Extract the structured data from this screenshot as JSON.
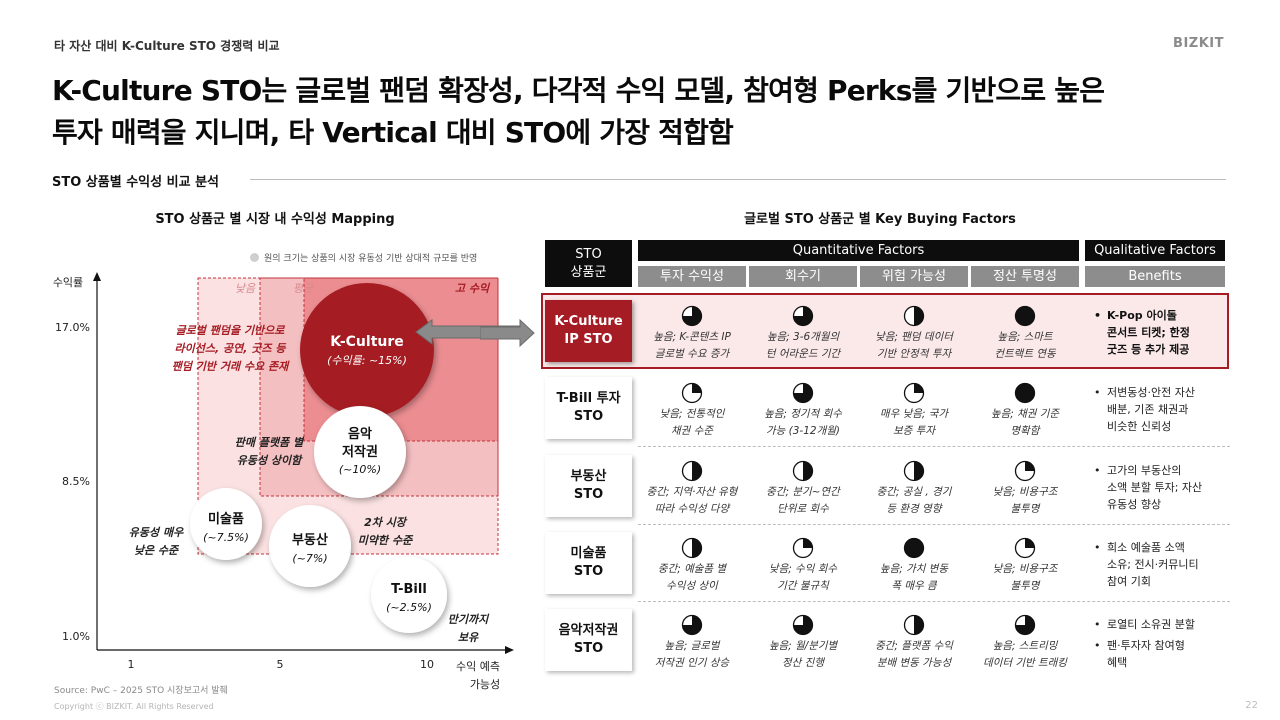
{
  "header": {
    "breadcrumb": "타 자산 대비 K-Culture STO 경쟁력 비교",
    "brand": "BIZKIT",
    "headline_line1": "K-Culture STO는 글로벌 팬덤 확장성, 다각적 수익 모델, 참여형 Perks를 기반으로 높은",
    "headline_line2": "투자 매력을 지니며, 타 Vertical 대비 STO에 가장 적합함",
    "section_label": "STO 상품별 수익성 비교 분석"
  },
  "mapping": {
    "title": "STO 상품군 별 시장 내 수익성 Mapping",
    "legend_note": "원의 크기는 상품의 시장 유동성 기반 상대적 규모를 반영",
    "y_axis_label": "수익률",
    "x_axis_label_line1": "수익 예측",
    "x_axis_label_line2": "가능성",
    "y_ticks": [
      {
        "label": "17.0%",
        "value": 17.0
      },
      {
        "label": "8.5%",
        "value": 8.5
      },
      {
        "label": "1.0%",
        "value": 1.0
      }
    ],
    "x_ticks": [
      {
        "label": "1",
        "value": 1
      },
      {
        "label": "5",
        "value": 5
      },
      {
        "label": "10",
        "value": 10
      }
    ],
    "zones": [
      {
        "label": "낮음",
        "color": "#fbe1e1"
      },
      {
        "label": "평균",
        "color": "#f4bfc1"
      },
      {
        "label": "고 수익",
        "color": "#eb8d91"
      }
    ],
    "bubbles": [
      {
        "name": "K-Culture",
        "sub": "(수익률: ~15%)",
        "fill": "#a51c24",
        "text_color": "#ffffff"
      },
      {
        "name": "음악 저작권",
        "name_line1": "음악",
        "name_line2": "저작권",
        "sub": "(~10%)",
        "fill": "#ffffff",
        "text_color": "#111111"
      },
      {
        "name": "미술품",
        "sub": "(~7.5%)",
        "fill": "#ffffff",
        "text_color": "#111111"
      },
      {
        "name": "부동산",
        "sub": "(~7%)",
        "fill": "#ffffff",
        "text_color": "#111111"
      },
      {
        "name": "T-Bill",
        "sub": "(~2.5%)",
        "fill": "#ffffff",
        "text_color": "#111111"
      }
    ],
    "annotations": {
      "kculture": [
        "글로벌 팬덤을 기반으로",
        "라이선스, 공연, 굿즈 등",
        "팬덤 기반 거래 수요 존재"
      ],
      "music": [
        "판매 플랫폼 별",
        "유동성 상이함"
      ],
      "secondary": [
        "2차 시장",
        "미약한 수준"
      ],
      "art": [
        "유동성 매우",
        "낮은 수준"
      ],
      "tbill": [
        "만기까지",
        "보유"
      ]
    }
  },
  "kbf": {
    "title": "글로벌 STO 상품군 별 Key Buying Factors",
    "corner_header": [
      "STO",
      "상품군"
    ],
    "quant_header": "Quantitative Factors",
    "qual_header": "Qualitative Factors",
    "columns": [
      "투자 수익성",
      "회수기",
      "위험 가능성",
      "정산 투명성"
    ],
    "benefits_header": "Benefits",
    "rows": [
      {
        "category": [
          "K-Culture",
          "IP STO"
        ],
        "highlight": true,
        "scores": [
          0.75,
          0.75,
          0.5,
          1.0
        ],
        "notes": [
          [
            "높음; K-콘텐츠 IP",
            "글로벌 수요 증가"
          ],
          [
            "높음; 3-6개월의",
            "턴 어라운드 기간"
          ],
          [
            "낮음; 팬덤 데이터",
            "기반 안정적 투자"
          ],
          [
            "높음; 스마트",
            "컨트랙트 연동"
          ]
        ],
        "benefits": [
          [
            "K-Pop 아이돌",
            "콘서트 티켓; 한정",
            "굿즈 등 추가 제공"
          ]
        ]
      },
      {
        "category": [
          "T-Bill 투자",
          "STO"
        ],
        "highlight": false,
        "scores": [
          0.25,
          0.75,
          0.25,
          1.0
        ],
        "notes": [
          [
            "낮음; 전통적인",
            "채권 수준"
          ],
          [
            "높음; 정기적 회수",
            "가능 (3-12개월)"
          ],
          [
            "매우 낮음; 국가",
            "보증 투자"
          ],
          [
            "높음; 채권 기준",
            "명확함"
          ]
        ],
        "benefits": [
          [
            "저변동성·안전 자산",
            "배분, 기존 채권과",
            "비슷한 신뢰성"
          ]
        ]
      },
      {
        "category": [
          "부동산",
          "STO"
        ],
        "highlight": false,
        "scores": [
          0.5,
          0.5,
          0.5,
          0.25
        ],
        "notes": [
          [
            "중간; 지역·자산 유형",
            "따라 수익성 다양"
          ],
          [
            "중간; 분기~연간",
            "단위로 회수"
          ],
          [
            "중간; 공실 , 경기",
            "등 환경 영향"
          ],
          [
            "낮음; 비용구조",
            "불투명"
          ]
        ],
        "benefits": [
          [
            "고가의 부동산의",
            "소액 분할 투자; 자산",
            "유동성 향상"
          ]
        ]
      },
      {
        "category": [
          "미술품",
          "STO"
        ],
        "highlight": false,
        "scores": [
          0.5,
          0.25,
          1.0,
          0.25
        ],
        "notes": [
          [
            "중간; 예술품 별",
            "수익성 상이"
          ],
          [
            "낮음; 수익 회수",
            "기간 불규칙"
          ],
          [
            "높음; 가치 변동",
            "폭 매우 큼"
          ],
          [
            "낮음; 비용구조",
            "불투명"
          ]
        ],
        "benefits": [
          [
            "희소 예술품 소액",
            "소유; 전시·커뮤니티",
            "참여 기회"
          ]
        ]
      },
      {
        "category": [
          "음악저작권",
          "STO"
        ],
        "highlight": false,
        "scores": [
          0.75,
          0.75,
          0.5,
          0.75
        ],
        "notes": [
          [
            "높음; 글로벌",
            "저작권 인기 상승"
          ],
          [
            "높음; 월/분기별",
            "정산 진행"
          ],
          [
            "중간; 플랫폼 수익",
            "분배 변동 가능성"
          ],
          [
            "높음; 스트리밍",
            "데이터 기반 트래킹"
          ]
        ],
        "benefits": [
          [
            "로열티 소유권 분할"
          ],
          [
            "팬·투자자 참여형",
            "혜택"
          ]
        ]
      }
    ]
  },
  "footer": {
    "source": "Source: PwC – 2025 STO 시장보고서 발췌",
    "copyright": "Copyright ⓒ BIZKIT. All Rights Reserved",
    "page_number": "22"
  },
  "colors": {
    "accent": "#a51c24",
    "dark": "#0d0d0d",
    "grey_header": "#8d8d8d"
  }
}
